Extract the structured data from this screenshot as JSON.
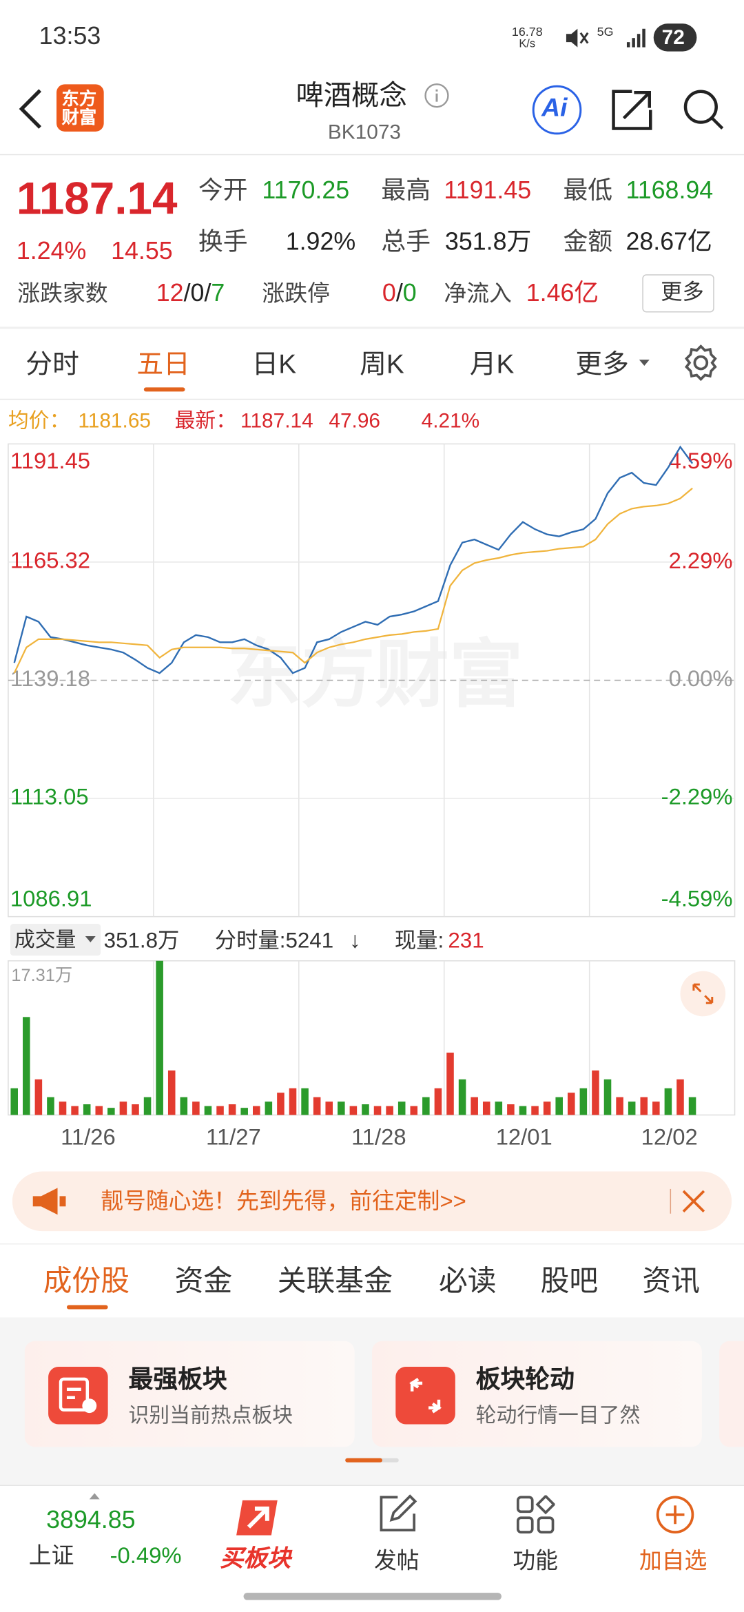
{
  "status": {
    "time": "13:53",
    "speed": "16.78",
    "speed_unit": "K/s",
    "network": "5G",
    "battery": "72"
  },
  "header": {
    "logo_line1": "东方",
    "logo_line2": "财富",
    "title": "啤酒概念",
    "code": "BK1073",
    "ai": "Ai"
  },
  "quote": {
    "price": "1187.14",
    "change_pct": "1.24%",
    "change": "14.55",
    "fields": [
      {
        "label": "今开",
        "value": "1170.25",
        "color": "green"
      },
      {
        "label": "最高",
        "value": "1191.45",
        "color": "red"
      },
      {
        "label": "最低",
        "value": "1168.94",
        "color": "green"
      },
      {
        "label": "换手",
        "value": "1.92%",
        "color": "black"
      },
      {
        "label": "总手",
        "value": "351.8万",
        "color": "black"
      },
      {
        "label": "金额",
        "value": "28.67亿",
        "color": "black"
      }
    ],
    "breadth": {
      "label": "涨跌家数",
      "parts": [
        {
          "text": "12",
          "color": "red"
        },
        {
          "text": "/",
          "color": "black"
        },
        {
          "text": "0",
          "color": "black"
        },
        {
          "text": "/",
          "color": "black"
        },
        {
          "text": "7",
          "color": "green"
        }
      ]
    },
    "limit": {
      "label": "涨跌停",
      "parts": [
        {
          "text": "0",
          "color": "red"
        },
        {
          "text": "/",
          "color": "black"
        },
        {
          "text": "0",
          "color": "green"
        }
      ]
    },
    "inflow": {
      "label": "净流入",
      "value": "1.46亿",
      "color": "red"
    },
    "more": "更多"
  },
  "period_tabs": [
    "分时",
    "五日",
    "日K",
    "周K",
    "月K",
    "更多"
  ],
  "chart_legend": {
    "avg_label": "均价：",
    "avg": "1181.65",
    "last_label": "最新：",
    "last": "1187.14",
    "change": "47.96",
    "change_pct": "4.21%"
  },
  "watermark": "东方财富",
  "volume_header": {
    "selector": "成交量",
    "total": "351.8万",
    "tick_volume": "分时量:5241",
    "arrow": "↓",
    "current_label": "现量:",
    "current": "231"
  },
  "chart_data": [
    {
      "type": "line",
      "days": [
        "11/26",
        "11/27",
        "11/28",
        "12/01",
        "12/02"
      ],
      "ylim": [
        1086.91,
        1191.45
      ],
      "yticks": [
        1191.45,
        1165.32,
        1139.18,
        1113.05,
        1086.91
      ],
      "y2lim": [
        -4.59,
        4.59
      ],
      "y2ticks": [
        {
          "value": 4.59,
          "label": "4.59%"
        },
        {
          "value": 2.29,
          "label": "2.29%"
        },
        {
          "value": 0,
          "label": "0.00%"
        },
        {
          "value": -2.29,
          "label": "-2.29%"
        },
        {
          "value": -4.59,
          "label": "-4.59%"
        }
      ],
      "grid": true,
      "series": [
        {
          "name": "最新",
          "color": "#2f6db3",
          "values": [
            1143.04,
            1153.27,
            1152.13,
            1148.73,
            1148.27,
            1147.59,
            1146.91,
            1146.45,
            1146.0,
            1145.32,
            1143.73,
            1141.91,
            1140.77,
            1143.04,
            1147.59,
            1149.18,
            1148.73,
            1147.59,
            1147.59,
            1148.27,
            1146.91,
            1146.0,
            1144.18,
            1140.77,
            1141.91,
            1147.59,
            1148.27,
            1149.86,
            1151.0,
            1152.13,
            1151.45,
            1153.27,
            1153.72,
            1154.41,
            1155.54,
            1156.68,
            1164.63,
            1169.63,
            1170.31,
            1169.18,
            1168.04,
            1171.45,
            1174.18,
            1172.59,
            1171.45,
            1171.0,
            1171.91,
            1172.59,
            1174.86,
            1180.54,
            1183.95,
            1185.09,
            1182.81,
            1182.36,
            1186.22,
            1190.8,
            1187.14,
            null,
            null,
            null
          ]
        },
        {
          "name": "均价",
          "color": "#f0b43c",
          "values": [
            1140.77,
            1146.45,
            1148.27,
            1148.27,
            1148.27,
            1148.05,
            1147.82,
            1147.59,
            1147.59,
            1147.36,
            1147.14,
            1146.91,
            1144.18,
            1146.0,
            1146.45,
            1146.45,
            1146.45,
            1146.45,
            1146.23,
            1146.23,
            1146.0,
            1145.77,
            1145.54,
            1145.32,
            1143.04,
            1145.32,
            1146.45,
            1147.14,
            1147.59,
            1148.27,
            1148.73,
            1149.18,
            1149.41,
            1149.86,
            1150.09,
            1150.54,
            1160.09,
            1163.5,
            1165.09,
            1165.77,
            1166.22,
            1166.91,
            1167.36,
            1167.59,
            1167.82,
            1168.27,
            1168.5,
            1168.72,
            1170.31,
            1173.72,
            1176.0,
            1177.13,
            1177.59,
            1177.81,
            1178.27,
            1179.41,
            1181.65,
            null,
            null,
            null
          ]
        }
      ]
    },
    {
      "type": "bar",
      "ylim": [
        0,
        17.31
      ],
      "yticks": [
        {
          "value": 17.31,
          "label": "17.31万"
        }
      ],
      "values": [
        3,
        11,
        4,
        2,
        1.5,
        1,
        1.2,
        1,
        0.8,
        1.5,
        1.2,
        2,
        17.31,
        5,
        2,
        1.5,
        1,
        1,
        1.2,
        0.8,
        1,
        1.5,
        2.5,
        3,
        3,
        2,
        1.5,
        1.5,
        1,
        1.2,
        1,
        1,
        1.5,
        1,
        2,
        3,
        7,
        4,
        2,
        1.5,
        1.5,
        1.2,
        1,
        1,
        1.5,
        2,
        2.5,
        3,
        5,
        4,
        2,
        1.5,
        2,
        1.5,
        3,
        4,
        2,
        null,
        null,
        null
      ],
      "colors": [
        "#2b9b2b",
        "#2b9b2b",
        "#e33b2f",
        "#2b9b2b",
        "#e33b2f",
        "#e33b2f",
        "#2b9b2b",
        "#e33b2f",
        "#2b9b2b",
        "#e33b2f",
        "#e33b2f",
        "#2b9b2b",
        "#2b9b2b",
        "#e33b2f",
        "#2b9b2b",
        "#e33b2f",
        "#2b9b2b",
        "#e33b2f",
        "#e33b2f",
        "#2b9b2b",
        "#e33b2f",
        "#2b9b2b",
        "#e33b2f",
        "#e33b2f",
        "#2b9b2b",
        "#e33b2f",
        "#e33b2f",
        "#2b9b2b",
        "#e33b2f",
        "#2b9b2b",
        "#e33b2f",
        "#e33b2f",
        "#2b9b2b",
        "#e33b2f",
        "#2b9b2b",
        "#e33b2f",
        "#e33b2f",
        "#2b9b2b",
        "#e33b2f",
        "#e33b2f",
        "#2b9b2b",
        "#e33b2f",
        "#2b9b2b",
        "#e33b2f",
        "#e33b2f",
        "#2b9b2b",
        "#e33b2f",
        "#2b9b2b",
        "#e33b2f",
        "#2b9b2b",
        "#e33b2f",
        "#2b9b2b",
        "#e33b2f",
        "#e33b2f",
        "#2b9b2b",
        "#e33b2f",
        "#2b9b2b",
        null,
        null,
        null
      ]
    }
  ],
  "banner": {
    "text": "靓号随心选！先到先得，前往定制>>"
  },
  "content_tabs": [
    "成份股",
    "资金",
    "关联基金",
    "必读",
    "股吧",
    "资讯"
  ],
  "cards": [
    {
      "title": "最强板块",
      "subtitle": "识别当前热点板块"
    },
    {
      "title": "板块轮动",
      "subtitle": "轮动行情一目了然"
    }
  ],
  "bottom_nav": {
    "index_value": "3894.85",
    "index_name": "上证",
    "index_change": "-0.49%",
    "buy": "买板块",
    "post": "发帖",
    "functions": "功能",
    "add": "加自选"
  }
}
